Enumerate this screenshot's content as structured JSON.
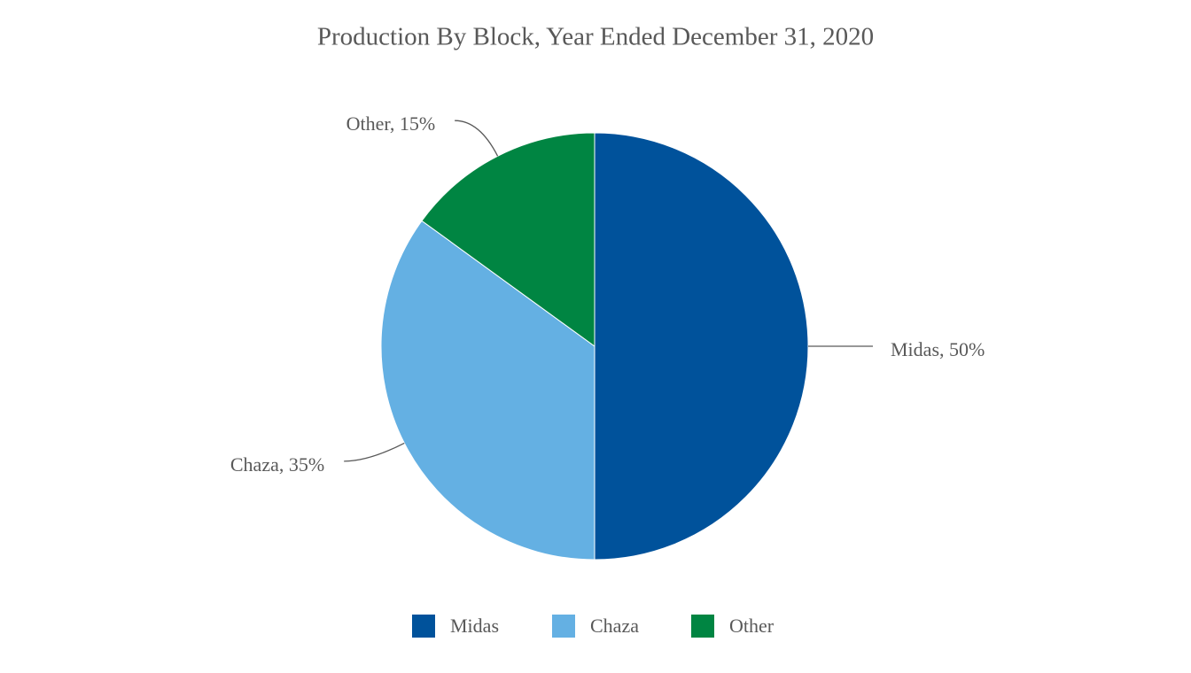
{
  "chart_data": {
    "type": "pie",
    "title": "Production By Block, Year Ended December 31, 2020",
    "categories": [
      "Midas",
      "Chaza",
      "Other"
    ],
    "values": [
      50,
      35,
      15
    ],
    "value_labels": [
      "Midas, 50%",
      "Chaza, 35%",
      "Other, 15%"
    ],
    "colors": [
      "#00529b",
      "#64b0e3",
      "#008542"
    ],
    "legend": "bottom"
  }
}
